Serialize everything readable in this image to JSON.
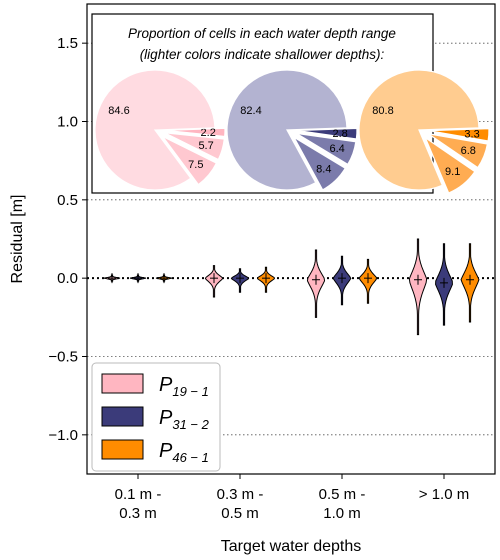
{
  "chart_data": {
    "type": "violin",
    "ylabel": "Residual [m]",
    "xlabel": "Target water depths",
    "ylim": [
      -1.25,
      1.75
    ],
    "yticks": [
      {
        "value": 1.5,
        "label": "1.5"
      },
      {
        "value": 1.0,
        "label": "1.0"
      },
      {
        "value": 0.5,
        "label": "0.5"
      },
      {
        "value": 0.0,
        "label": "0.0"
      },
      {
        "value": -0.5,
        "label": "−0.5"
      },
      {
        "value": -1.0,
        "label": "−1.0"
      }
    ],
    "grid": "horizontal dotted",
    "zero_line": "dotted",
    "categories": [
      {
        "line1": "0.1 m -",
        "line2": "0.3 m"
      },
      {
        "line1": "0.3 m -",
        "line2": "0.5 m"
      },
      {
        "line1": "0.5 m -",
        "line2": "1.0 m"
      },
      {
        "line1": "> 1.0 m",
        "line2": ""
      }
    ],
    "series": [
      {
        "name_main": "P",
        "name_sub": "19 − 1",
        "color": "#ffb6c1",
        "pie_colors": [
          "#ffdbe1",
          "#ffc8d0",
          "#ffb6c1"
        ],
        "violins": [
          {
            "min": -0.02,
            "max": 0.02,
            "median": 0.0
          },
          {
            "min": -0.12,
            "max": 0.08,
            "median": 0.0
          },
          {
            "min": -0.25,
            "max": 0.18,
            "median": -0.01
          },
          {
            "min": -0.36,
            "max": 0.25,
            "median": -0.01
          }
        ]
      },
      {
        "name_main": "P",
        "name_sub": "31 − 2",
        "color": "#3b3b7a",
        "pie_colors": [
          "#b3b3d1",
          "#7b7bab",
          "#3b3b7a"
        ],
        "violins": [
          {
            "min": -0.02,
            "max": 0.02,
            "median": 0.0
          },
          {
            "min": -0.09,
            "max": 0.06,
            "median": 0.0
          },
          {
            "min": -0.17,
            "max": 0.14,
            "median": 0.0
          },
          {
            "min": -0.3,
            "max": 0.22,
            "median": -0.03
          }
        ]
      },
      {
        "name_main": "P",
        "name_sub": "46 − 1",
        "color": "#ff8c00",
        "pie_colors": [
          "#ffcc90",
          "#ffac52",
          "#ff8c00"
        ],
        "violins": [
          {
            "min": -0.02,
            "max": 0.02,
            "median": 0.0
          },
          {
            "min": -0.09,
            "max": 0.07,
            "median": 0.0
          },
          {
            "min": -0.16,
            "max": 0.12,
            "median": 0.0
          },
          {
            "min": -0.28,
            "max": 0.22,
            "median": -0.01
          }
        ]
      }
    ],
    "inset": {
      "title_line1": "Proportion of cells in each water depth range",
      "title_line2": "(lighter colors indicate shallower depths):",
      "pies": [
        {
          "values": [
            84.6,
            7.5,
            5.7,
            2.2
          ]
        },
        {
          "values": [
            82.4,
            8.4,
            6.4,
            2.8
          ]
        },
        {
          "values": [
            80.8,
            9.1,
            6.8,
            3.3
          ]
        }
      ]
    },
    "legend": "lower-left"
  }
}
